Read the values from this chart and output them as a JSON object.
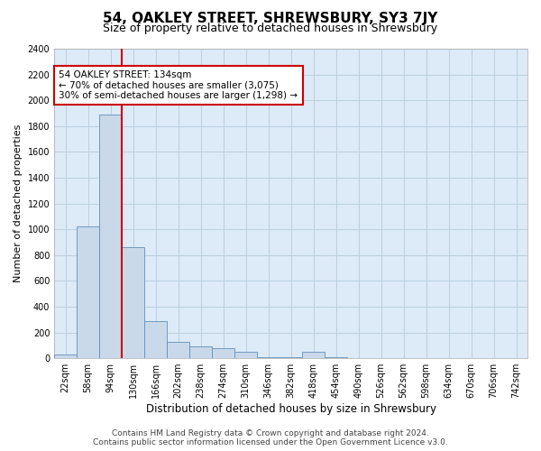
{
  "title": "54, OAKLEY STREET, SHREWSBURY, SY3 7JY",
  "subtitle": "Size of property relative to detached houses in Shrewsbury",
  "xlabel": "Distribution of detached houses by size in Shrewsbury",
  "ylabel": "Number of detached properties",
  "footer_line1": "Contains HM Land Registry data © Crown copyright and database right 2024.",
  "footer_line2": "Contains public sector information licensed under the Open Government Licence v3.0.",
  "annotation_line1": "54 OAKLEY STREET: 134sqm",
  "annotation_line2": "← 70% of detached houses are smaller (3,075)",
  "annotation_line3": "30% of semi-detached houses are larger (1,298) →",
  "bar_color": "#c9d9ea",
  "bar_edge_color": "#6090bb",
  "vline_color": "#cc0000",
  "annotation_box_edge_color": "#cc0000",
  "background_color": "#ffffff",
  "plot_bg_color": "#ddeaf7",
  "grid_color": "#b8cfe0",
  "bins": [
    "22sqm",
    "58sqm",
    "94sqm",
    "130sqm",
    "166sqm",
    "202sqm",
    "238sqm",
    "274sqm",
    "310sqm",
    "346sqm",
    "382sqm",
    "418sqm",
    "454sqm",
    "490sqm",
    "526sqm",
    "562sqm",
    "598sqm",
    "634sqm",
    "670sqm",
    "706sqm",
    "742sqm"
  ],
  "values": [
    28,
    1020,
    1890,
    860,
    290,
    130,
    95,
    80,
    50,
    5,
    5,
    50,
    5,
    0,
    0,
    0,
    0,
    0,
    0,
    0,
    0
  ],
  "vline_position": 2.5,
  "ylim": [
    0,
    2400
  ],
  "yticks": [
    0,
    200,
    400,
    600,
    800,
    1000,
    1200,
    1400,
    1600,
    1800,
    2000,
    2200,
    2400
  ],
  "title_fontsize": 11,
  "subtitle_fontsize": 9,
  "xlabel_fontsize": 8.5,
  "ylabel_fontsize": 8,
  "tick_fontsize": 7,
  "annotation_fontsize": 7.5,
  "footer_fontsize": 6.5
}
